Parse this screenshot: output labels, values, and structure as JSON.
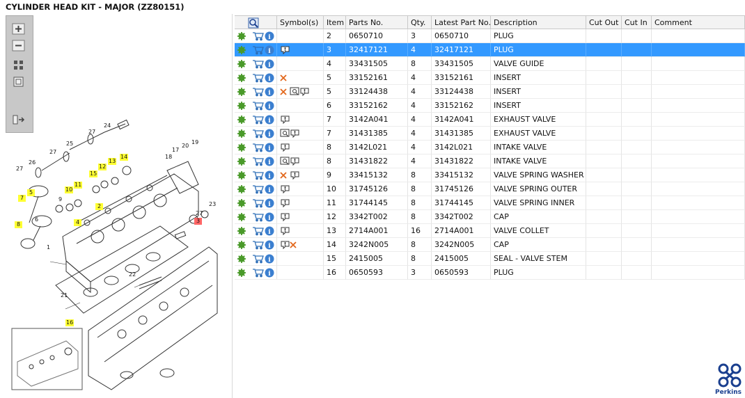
{
  "header": {
    "title": "CYLINDER HEAD KIT - MAJOR (ZZ80151)"
  },
  "diagram": {
    "callouts": [
      {
        "label": "24",
        "style": "plain"
      },
      {
        "label": "27",
        "style": "plain"
      },
      {
        "label": "25",
        "style": "plain"
      },
      {
        "label": "27",
        "style": "plain"
      },
      {
        "label": "26",
        "style": "plain"
      },
      {
        "label": "27",
        "style": "plain"
      },
      {
        "label": "17",
        "style": "plain"
      },
      {
        "label": "20",
        "style": "plain"
      },
      {
        "label": "19",
        "style": "plain"
      },
      {
        "label": "18",
        "style": "plain"
      },
      {
        "label": "14",
        "style": "yellow"
      },
      {
        "label": "13",
        "style": "yellow"
      },
      {
        "label": "12",
        "style": "yellow"
      },
      {
        "label": "15",
        "style": "yellow"
      },
      {
        "label": "11",
        "style": "yellow"
      },
      {
        "label": "10",
        "style": "yellow"
      },
      {
        "label": "5",
        "style": "yellow"
      },
      {
        "label": "7",
        "style": "yellow"
      },
      {
        "label": "9",
        "style": "plain"
      },
      {
        "label": "2",
        "style": "yellow"
      },
      {
        "label": "6",
        "style": "plain"
      },
      {
        "label": "8",
        "style": "yellow"
      },
      {
        "label": "4",
        "style": "yellow"
      },
      {
        "label": "1",
        "style": "plain"
      },
      {
        "label": "27",
        "style": "plain"
      },
      {
        "label": "23",
        "style": "plain"
      },
      {
        "label": "3",
        "style": "red"
      },
      {
        "label": "22",
        "style": "plain"
      },
      {
        "label": "21",
        "style": "plain"
      },
      {
        "label": "16",
        "style": "yellow"
      }
    ]
  },
  "table": {
    "headers": [
      "Symbol(s)",
      "Item",
      "Parts No.",
      "Qty.",
      "Latest Part No.",
      "Description",
      "Cut Out",
      "Cut In",
      "Comment"
    ],
    "selected_row": 1,
    "rows": [
      {
        "item": 2,
        "part_no": "0650710",
        "qty": 3,
        "latest_part_no": "0650710",
        "description": "PLUG"
      },
      {
        "item": 3,
        "part_no": "32417121",
        "qty": 4,
        "latest_part_no": "32417121",
        "description": "PLUG"
      },
      {
        "item": 4,
        "part_no": "33431505",
        "qty": 8,
        "latest_part_no": "33431505",
        "description": "VALVE GUIDE"
      },
      {
        "item": 5,
        "part_no": "33152161",
        "qty": 4,
        "latest_part_no": "33152161",
        "description": "INSERT"
      },
      {
        "item": 5,
        "part_no": "33124438",
        "qty": 4,
        "latest_part_no": "33124438",
        "description": "INSERT"
      },
      {
        "item": 6,
        "part_no": "33152162",
        "qty": 4,
        "latest_part_no": "33152162",
        "description": "INSERT"
      },
      {
        "item": 7,
        "part_no": "3142A041",
        "qty": 4,
        "latest_part_no": "3142A041",
        "description": "EXHAUST VALVE"
      },
      {
        "item": 7,
        "part_no": "31431385",
        "qty": 4,
        "latest_part_no": "31431385",
        "description": "EXHAUST VALVE"
      },
      {
        "item": 8,
        "part_no": "3142L021",
        "qty": 4,
        "latest_part_no": "3142L021",
        "description": "INTAKE VALVE"
      },
      {
        "item": 8,
        "part_no": "31431822",
        "qty": 4,
        "latest_part_no": "31431822",
        "description": "INTAKE VALVE"
      },
      {
        "item": 9,
        "part_no": "33415132",
        "qty": 8,
        "latest_part_no": "33415132",
        "description": "VALVE SPRING WASHER"
      },
      {
        "item": 10,
        "part_no": "31745126",
        "qty": 8,
        "latest_part_no": "31745126",
        "description": "VALVE SPRING OUTER"
      },
      {
        "item": 11,
        "part_no": "31744145",
        "qty": 8,
        "latest_part_no": "31744145",
        "description": "VALVE SPRING INNER"
      },
      {
        "item": 12,
        "part_no": "3342T002",
        "qty": 8,
        "latest_part_no": "3342T002",
        "description": "CAP"
      },
      {
        "item": 13,
        "part_no": "2714A001",
        "qty": 16,
        "latest_part_no": "2714A001",
        "description": "VALVE COLLET"
      },
      {
        "item": 14,
        "part_no": "3242N005",
        "qty": 8,
        "latest_part_no": "3242N005",
        "description": "CAP"
      },
      {
        "item": 15,
        "part_no": "2415005",
        "qty": 8,
        "latest_part_no": "2415005",
        "description": "SEAL - VALVE STEM"
      },
      {
        "item": 16,
        "part_no": "0650593",
        "qty": 3,
        "latest_part_no": "0650593",
        "description": "PLUG"
      }
    ]
  },
  "brand": {
    "name": "Perkins"
  }
}
